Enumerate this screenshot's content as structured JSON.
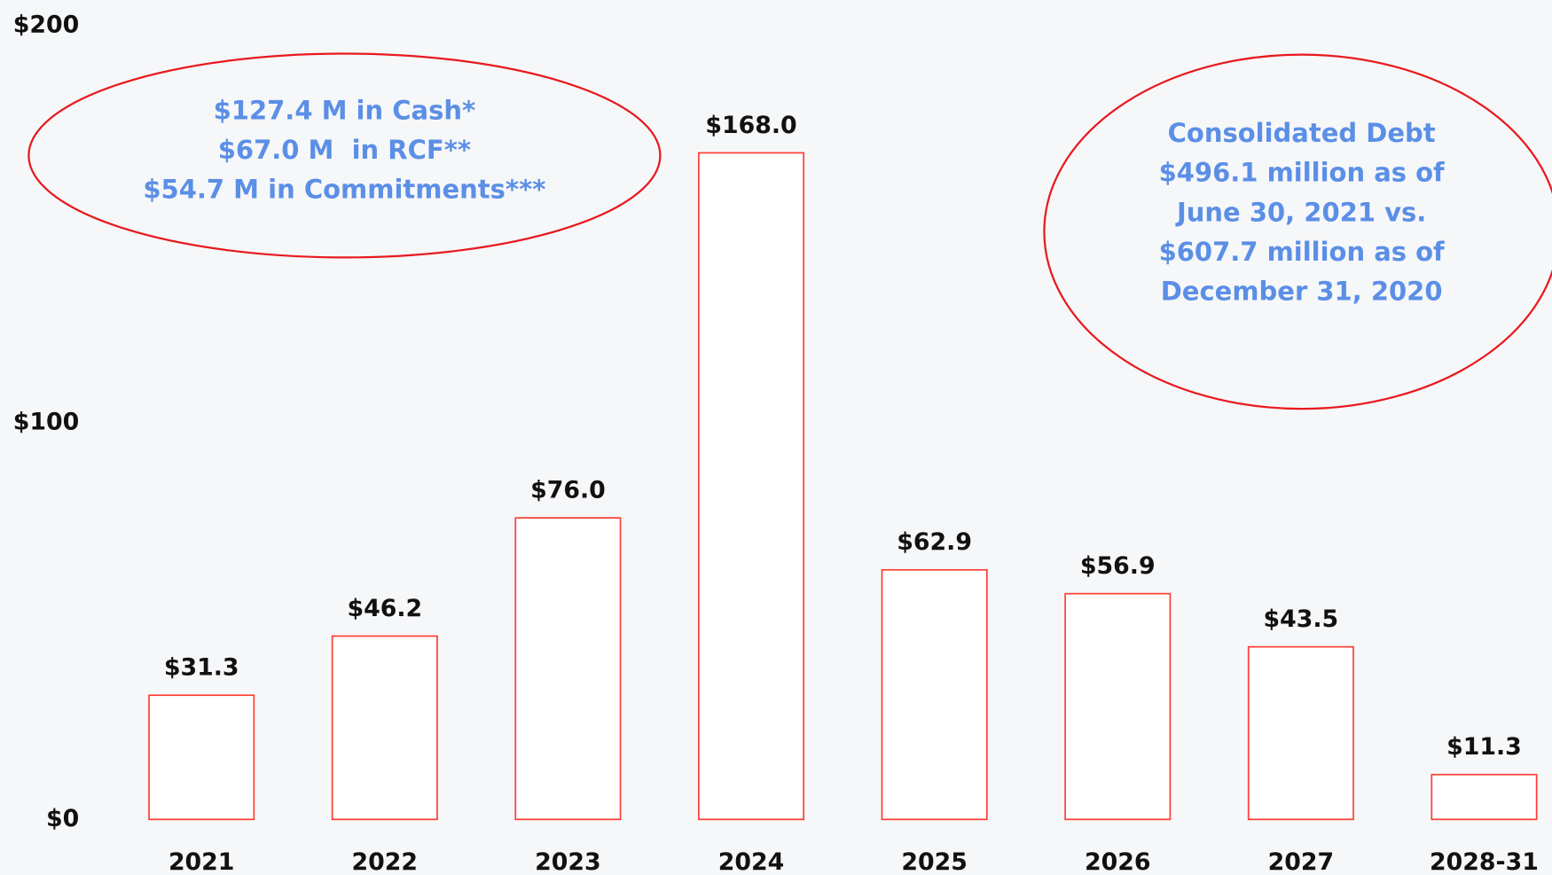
{
  "chart_data": {
    "type": "bar",
    "categories": [
      "2021",
      "2022",
      "2023",
      "2024",
      "2025",
      "2026",
      "2027",
      "2028-31"
    ],
    "values": [
      31.3,
      46.2,
      76.0,
      168.0,
      62.9,
      56.9,
      43.5,
      11.3
    ],
    "value_labels": [
      "$31.3",
      "$46.2",
      "$76.0",
      "$168.0",
      "$62.9",
      "$56.9",
      "$43.5",
      "$11.3"
    ],
    "color": "#ff3b30",
    "ylim": [
      0,
      200
    ],
    "yticks": [
      {
        "value": 0,
        "label": "$0"
      },
      {
        "value": 100,
        "label": "$100"
      },
      {
        "value": 200,
        "label": "$200"
      }
    ],
    "grid": false,
    "annotations": [
      {
        "lines": [
          "$127.4 M in Cash*",
          "$67.0 M  in RCF**",
          "$54.7 M in Commitments***"
        ]
      },
      {
        "lines": [
          "Consolidated Debt",
          "$496.1 million as of",
          "June 30, 2021 vs.",
          "$607.7 million as of",
          "December 31, 2020"
        ]
      }
    ]
  }
}
